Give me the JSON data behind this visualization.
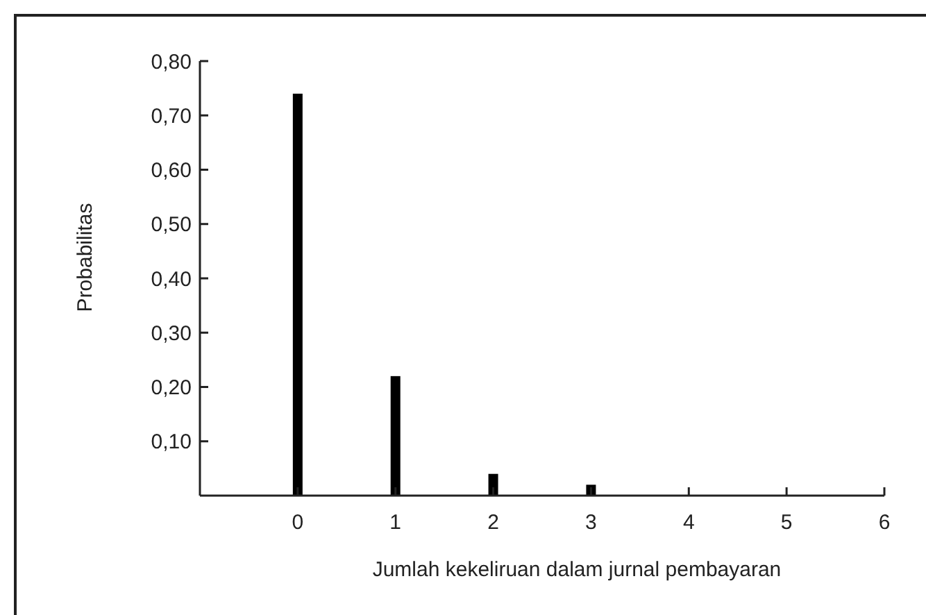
{
  "chart_data": {
    "type": "bar",
    "x": [
      0,
      1,
      2,
      3
    ],
    "values": [
      0.74,
      0.22,
      0.04,
      0.02
    ],
    "color": "#000000",
    "xlabel": "Jumlah kekeliruan dalam jurnal pembayaran",
    "ylabel": "Probabilitas",
    "xlim": [
      -1,
      6
    ],
    "xticks": [
      0,
      1,
      2,
      3,
      4,
      5,
      6
    ],
    "ylim": [
      0,
      0.8
    ],
    "yticks": [
      {
        "value": 0.1,
        "label": "0,10"
      },
      {
        "value": 0.2,
        "label": "0,20"
      },
      {
        "value": 0.3,
        "label": "0,30"
      },
      {
        "value": 0.4,
        "label": "0,40"
      },
      {
        "value": 0.5,
        "label": "0,50"
      },
      {
        "value": 0.6,
        "label": "0,60"
      },
      {
        "value": 0.7,
        "label": "0,70"
      },
      {
        "value": 0.8,
        "label": "0,80"
      }
    ],
    "grid": false
  }
}
